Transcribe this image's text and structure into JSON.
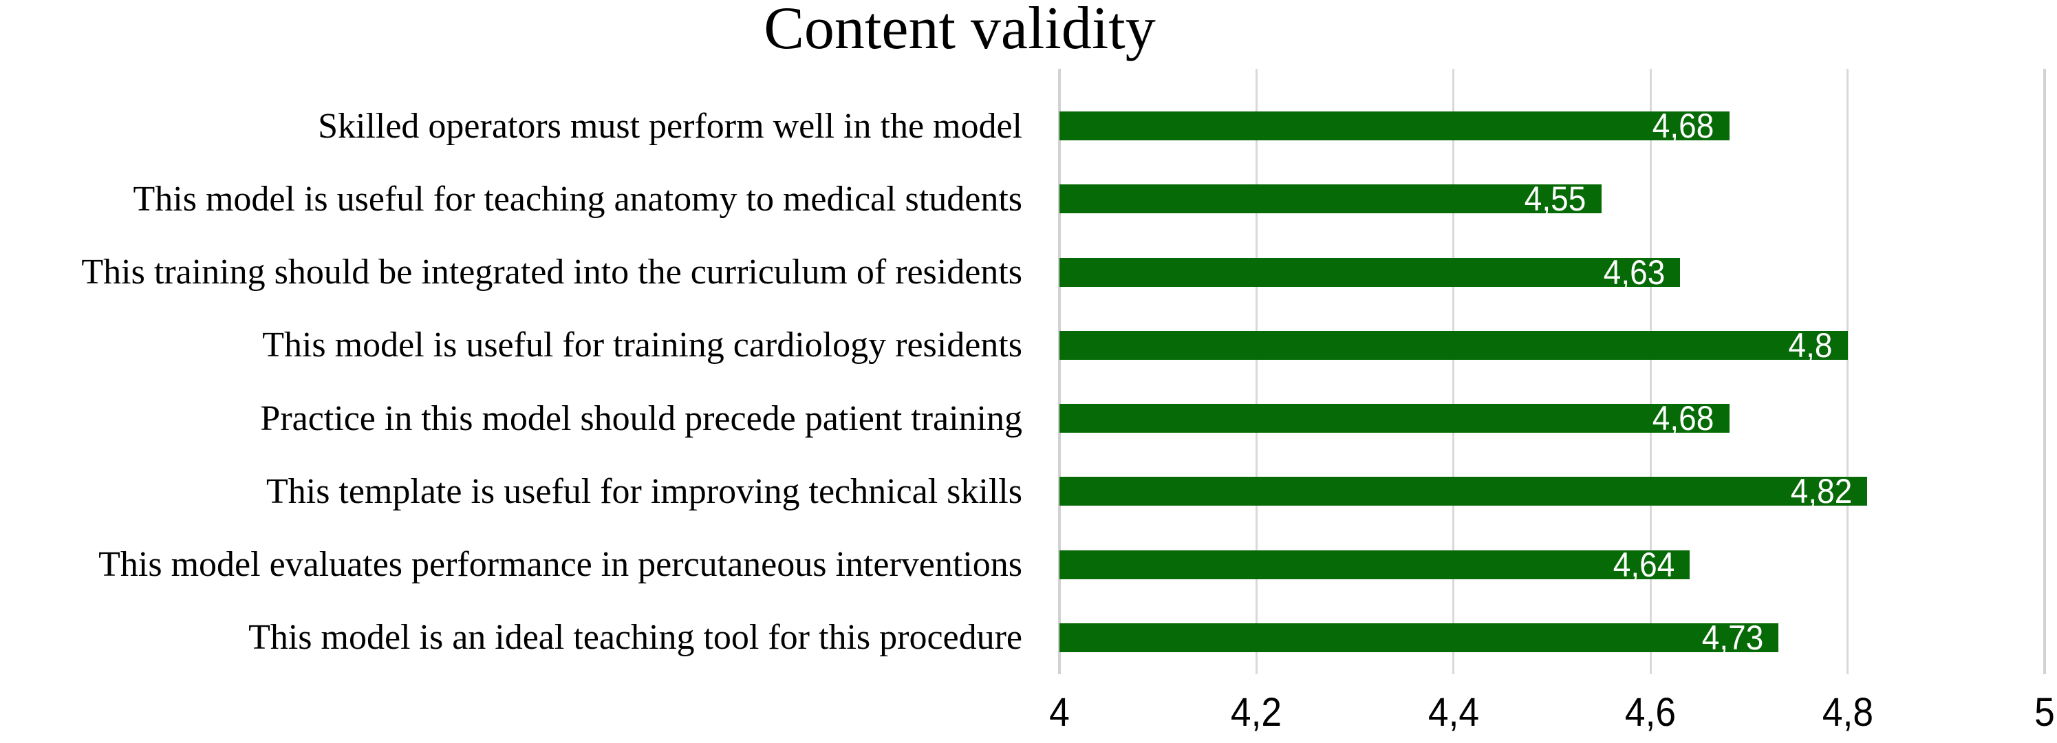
{
  "chart_data": {
    "type": "bar",
    "orientation": "horizontal",
    "title": "Content validity",
    "categories": [
      "Skilled operators must perform well in the model",
      "This model is useful for teaching anatomy to medical students",
      "This training should be integrated into the curriculum of residents",
      "This model is useful for training cardiology residents",
      "Practice in this model should precede patient training",
      "This template is useful for improving technical skills",
      "This model evaluates performance in percutaneous interventions",
      "This model is an ideal teaching tool for this procedure"
    ],
    "values": [
      4.68,
      4.55,
      4.63,
      4.8,
      4.68,
      4.82,
      4.64,
      4.73
    ],
    "value_labels": [
      "4,68",
      "4,55",
      "4,63",
      "4,8",
      "4,68",
      "4,82",
      "4,64",
      "4,73"
    ],
    "xlim": [
      4,
      5
    ],
    "x_ticks": [
      4,
      4.2,
      4.4,
      4.6,
      4.8,
      5
    ],
    "x_tick_labels": [
      "4",
      "4,2",
      "4,4",
      "4,6",
      "4,8",
      "5"
    ],
    "grid": "vertical-only",
    "legend": "none",
    "bar_color": "#066a06",
    "value_label_color": "#ffffff",
    "gridline_color": "#d9d9d9",
    "edge_gridline_color": "#d2d2d2",
    "text_color": "#000000",
    "background": "#ffffff"
  }
}
